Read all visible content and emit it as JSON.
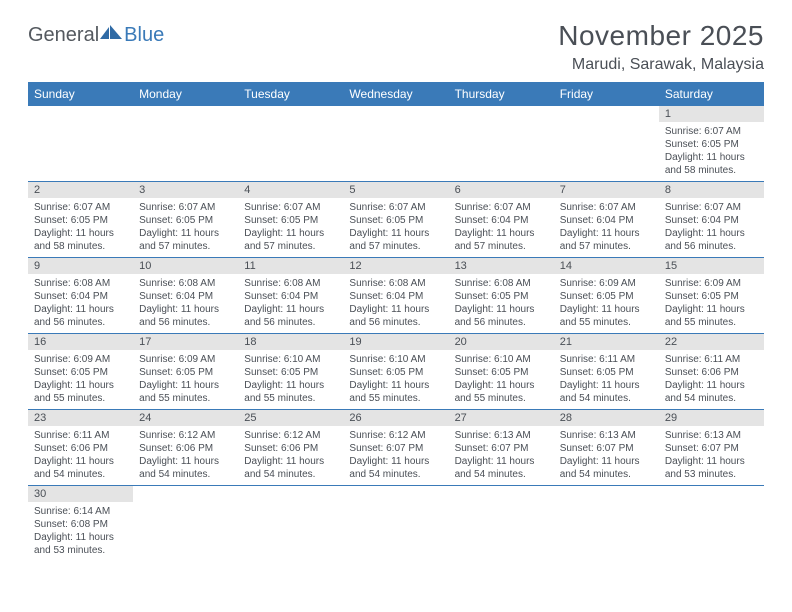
{
  "logo": {
    "general": "General",
    "blue": "Blue"
  },
  "title": "November 2025",
  "location": "Marudi, Sarawak, Malaysia",
  "colors": {
    "header_bg": "#3a7ab8",
    "header_text": "#ffffff",
    "daynum_bg": "#e4e4e4",
    "text": "#4a4f56",
    "row_divider": "#3a7ab8",
    "page_bg": "#ffffff"
  },
  "typography": {
    "title_fontsize": 28,
    "location_fontsize": 16,
    "weekday_fontsize": 12,
    "daynum_fontsize": 11,
    "cell_fontsize": 10
  },
  "weekdays": [
    "Sunday",
    "Monday",
    "Tuesday",
    "Wednesday",
    "Thursday",
    "Friday",
    "Saturday"
  ],
  "weeks": [
    [
      null,
      null,
      null,
      null,
      null,
      null,
      {
        "n": "1",
        "sr": "6:07 AM",
        "ss": "6:05 PM",
        "dl": "11 hours and 58 minutes."
      }
    ],
    [
      {
        "n": "2",
        "sr": "6:07 AM",
        "ss": "6:05 PM",
        "dl": "11 hours and 58 minutes."
      },
      {
        "n": "3",
        "sr": "6:07 AM",
        "ss": "6:05 PM",
        "dl": "11 hours and 57 minutes."
      },
      {
        "n": "4",
        "sr": "6:07 AM",
        "ss": "6:05 PM",
        "dl": "11 hours and 57 minutes."
      },
      {
        "n": "5",
        "sr": "6:07 AM",
        "ss": "6:05 PM",
        "dl": "11 hours and 57 minutes."
      },
      {
        "n": "6",
        "sr": "6:07 AM",
        "ss": "6:04 PM",
        "dl": "11 hours and 57 minutes."
      },
      {
        "n": "7",
        "sr": "6:07 AM",
        "ss": "6:04 PM",
        "dl": "11 hours and 57 minutes."
      },
      {
        "n": "8",
        "sr": "6:07 AM",
        "ss": "6:04 PM",
        "dl": "11 hours and 56 minutes."
      }
    ],
    [
      {
        "n": "9",
        "sr": "6:08 AM",
        "ss": "6:04 PM",
        "dl": "11 hours and 56 minutes."
      },
      {
        "n": "10",
        "sr": "6:08 AM",
        "ss": "6:04 PM",
        "dl": "11 hours and 56 minutes."
      },
      {
        "n": "11",
        "sr": "6:08 AM",
        "ss": "6:04 PM",
        "dl": "11 hours and 56 minutes."
      },
      {
        "n": "12",
        "sr": "6:08 AM",
        "ss": "6:04 PM",
        "dl": "11 hours and 56 minutes."
      },
      {
        "n": "13",
        "sr": "6:08 AM",
        "ss": "6:05 PM",
        "dl": "11 hours and 56 minutes."
      },
      {
        "n": "14",
        "sr": "6:09 AM",
        "ss": "6:05 PM",
        "dl": "11 hours and 55 minutes."
      },
      {
        "n": "15",
        "sr": "6:09 AM",
        "ss": "6:05 PM",
        "dl": "11 hours and 55 minutes."
      }
    ],
    [
      {
        "n": "16",
        "sr": "6:09 AM",
        "ss": "6:05 PM",
        "dl": "11 hours and 55 minutes."
      },
      {
        "n": "17",
        "sr": "6:09 AM",
        "ss": "6:05 PM",
        "dl": "11 hours and 55 minutes."
      },
      {
        "n": "18",
        "sr": "6:10 AM",
        "ss": "6:05 PM",
        "dl": "11 hours and 55 minutes."
      },
      {
        "n": "19",
        "sr": "6:10 AM",
        "ss": "6:05 PM",
        "dl": "11 hours and 55 minutes."
      },
      {
        "n": "20",
        "sr": "6:10 AM",
        "ss": "6:05 PM",
        "dl": "11 hours and 55 minutes."
      },
      {
        "n": "21",
        "sr": "6:11 AM",
        "ss": "6:05 PM",
        "dl": "11 hours and 54 minutes."
      },
      {
        "n": "22",
        "sr": "6:11 AM",
        "ss": "6:06 PM",
        "dl": "11 hours and 54 minutes."
      }
    ],
    [
      {
        "n": "23",
        "sr": "6:11 AM",
        "ss": "6:06 PM",
        "dl": "11 hours and 54 minutes."
      },
      {
        "n": "24",
        "sr": "6:12 AM",
        "ss": "6:06 PM",
        "dl": "11 hours and 54 minutes."
      },
      {
        "n": "25",
        "sr": "6:12 AM",
        "ss": "6:06 PM",
        "dl": "11 hours and 54 minutes."
      },
      {
        "n": "26",
        "sr": "6:12 AM",
        "ss": "6:07 PM",
        "dl": "11 hours and 54 minutes."
      },
      {
        "n": "27",
        "sr": "6:13 AM",
        "ss": "6:07 PM",
        "dl": "11 hours and 54 minutes."
      },
      {
        "n": "28",
        "sr": "6:13 AM",
        "ss": "6:07 PM",
        "dl": "11 hours and 54 minutes."
      },
      {
        "n": "29",
        "sr": "6:13 AM",
        "ss": "6:07 PM",
        "dl": "11 hours and 53 minutes."
      }
    ],
    [
      {
        "n": "30",
        "sr": "6:14 AM",
        "ss": "6:08 PM",
        "dl": "11 hours and 53 minutes."
      },
      null,
      null,
      null,
      null,
      null,
      null
    ]
  ],
  "labels": {
    "sunrise": "Sunrise:",
    "sunset": "Sunset:",
    "daylight": "Daylight:"
  }
}
